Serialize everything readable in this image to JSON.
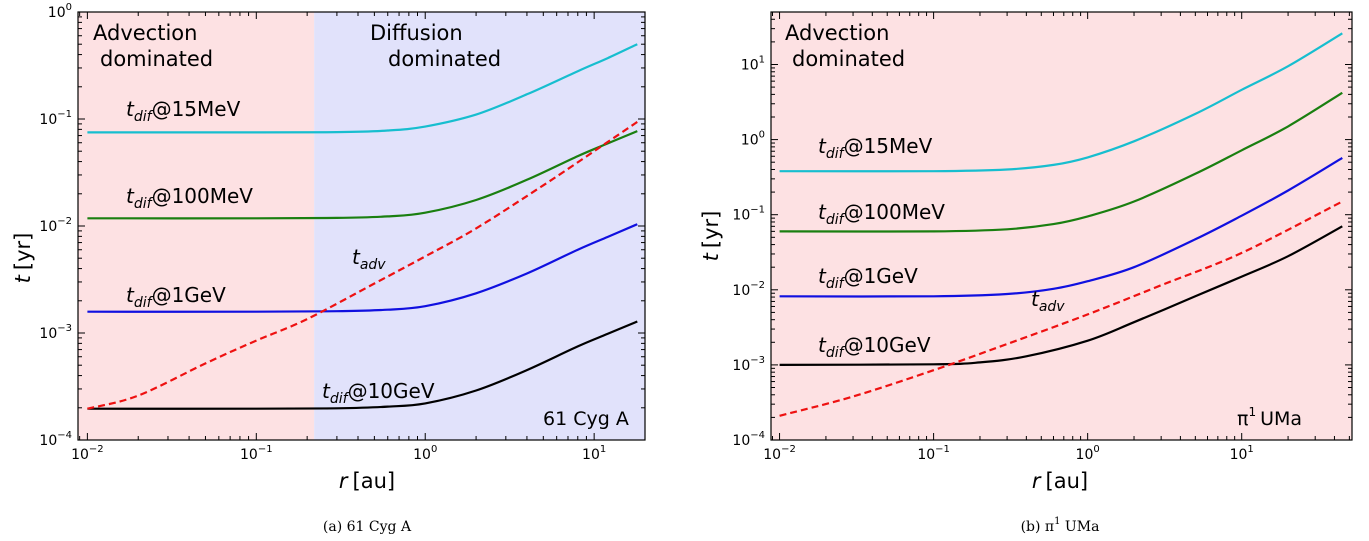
{
  "chart_data": [
    {
      "type": "line",
      "caption": "(a) 61 Cyg A",
      "star_label": "61 Cyg A",
      "xlabel": "r [au]",
      "ylabel": "t [yr]",
      "xscale": "log",
      "yscale": "log",
      "xlim": [
        0.0088,
        20
      ],
      "ylim": [
        0.0001,
        1
      ],
      "xticks": [
        0.01,
        0.1,
        1,
        10
      ],
      "yticks": [
        0.0001,
        0.001,
        0.01,
        0.1,
        1
      ],
      "regions": [
        {
          "label": "Advection\ndominated",
          "x_range": [
            0.0088,
            0.22
          ],
          "color": "#fde1e3"
        },
        {
          "label": "Diffusion\ndominated",
          "x_range": [
            0.22,
            20
          ],
          "color": "#e1e2fb"
        }
      ],
      "series": [
        {
          "name": "t_dif @15MeV",
          "color": "#17becf",
          "style": "solid",
          "x": [
            0.01,
            0.1,
            0.3,
            0.6,
            1,
            2,
            4,
            8,
            12,
            18
          ],
          "y": [
            0.075,
            0.075,
            0.0755,
            0.078,
            0.085,
            0.11,
            0.17,
            0.28,
            0.37,
            0.5
          ]
        },
        {
          "name": "t_dif @100MeV",
          "color": "#1a7f10",
          "style": "solid",
          "x": [
            0.01,
            0.1,
            0.3,
            0.6,
            1,
            2,
            4,
            8,
            12,
            18
          ],
          "y": [
            0.0118,
            0.0118,
            0.0119,
            0.0123,
            0.0133,
            0.0175,
            0.027,
            0.045,
            0.059,
            0.077
          ]
        },
        {
          "name": "t_dif @1GeV",
          "color": "#1010e0",
          "style": "solid",
          "x": [
            0.01,
            0.1,
            0.3,
            0.6,
            1,
            2,
            4,
            8,
            12,
            18
          ],
          "y": [
            0.00158,
            0.00158,
            0.0016,
            0.00165,
            0.00178,
            0.00235,
            0.0036,
            0.006,
            0.0079,
            0.0104
          ]
        },
        {
          "name": "t_dif @10GeV",
          "color": "#000000",
          "style": "solid",
          "x": [
            0.01,
            0.1,
            0.3,
            0.6,
            1,
            2,
            4,
            8,
            12,
            18
          ],
          "y": [
            0.000196,
            0.000196,
            0.000198,
            0.000205,
            0.00022,
            0.00029,
            0.00045,
            0.00075,
            0.00098,
            0.00128
          ]
        },
        {
          "name": "t_adv",
          "color": "#ee1111",
          "style": "dashed",
          "x": [
            0.01,
            0.02,
            0.05,
            0.1,
            0.2,
            0.5,
            1,
            2,
            5,
            10,
            18
          ],
          "y": [
            0.000196,
            0.00026,
            0.00052,
            0.00085,
            0.00135,
            0.0029,
            0.0052,
            0.0095,
            0.024,
            0.05,
            0.094
          ]
        }
      ],
      "annotations": [
        {
          "text": "t_dif@15MeV"
        },
        {
          "text": "t_dif@100MeV"
        },
        {
          "text": "t_dif@1GeV"
        },
        {
          "text": "t_dif@10GeV"
        },
        {
          "text": "t_adv"
        }
      ]
    },
    {
      "type": "line",
      "caption": "(b) π1 UMa",
      "star_label": "π1 UMa",
      "xlabel": "r [au]",
      "ylabel": "t [yr]",
      "xscale": "log",
      "yscale": "log",
      "xlim": [
        0.0088,
        52
      ],
      "ylim": [
        0.0001,
        50
      ],
      "xticks": [
        0.01,
        0.1,
        1,
        10
      ],
      "yticks": [
        0.0001,
        0.001,
        0.01,
        0.1,
        1,
        10
      ],
      "regions": [
        {
          "label": "Advection\ndominated",
          "x_range": [
            0.0088,
            52
          ],
          "color": "#fde1e3"
        }
      ],
      "series": [
        {
          "name": "t_dif @15MeV",
          "color": "#17becf",
          "style": "solid",
          "x": [
            0.01,
            0.1,
            0.3,
            0.6,
            1,
            2,
            5,
            10,
            20,
            45
          ],
          "y": [
            0.38,
            0.38,
            0.4,
            0.46,
            0.58,
            0.95,
            2.2,
            4.6,
            9.5,
            26
          ]
        },
        {
          "name": "t_dif @100MeV",
          "color": "#1a7f10",
          "style": "solid",
          "x": [
            0.01,
            0.1,
            0.3,
            0.6,
            1,
            2,
            5,
            10,
            20,
            45
          ],
          "y": [
            0.06,
            0.06,
            0.064,
            0.075,
            0.095,
            0.15,
            0.35,
            0.72,
            1.5,
            4.2
          ]
        },
        {
          "name": "t_dif @1GeV",
          "color": "#1010e0",
          "style": "solid",
          "x": [
            0.01,
            0.1,
            0.3,
            0.6,
            1,
            2,
            5,
            10,
            20,
            45
          ],
          "y": [
            0.0082,
            0.0082,
            0.0088,
            0.0103,
            0.013,
            0.02,
            0.047,
            0.097,
            0.21,
            0.57
          ]
        },
        {
          "name": "t_dif @10GeV",
          "color": "#000000",
          "style": "solid",
          "x": [
            0.01,
            0.1,
            0.2,
            0.4,
            1,
            2,
            5,
            10,
            20,
            45
          ],
          "y": [
            0.001,
            0.00102,
            0.00108,
            0.0013,
            0.0021,
            0.0037,
            0.0082,
            0.015,
            0.028,
            0.07
          ]
        },
        {
          "name": "t_adv",
          "color": "#ee1111",
          "style": "dashed",
          "x": [
            0.01,
            0.03,
            0.1,
            0.3,
            1,
            3,
            10,
            45
          ],
          "y": [
            0.00021,
            0.00038,
            0.00085,
            0.0019,
            0.0047,
            0.0115,
            0.031,
            0.15
          ]
        }
      ],
      "annotations": [
        {
          "text": "t_dif@15MeV"
        },
        {
          "text": "t_dif@100MeV"
        },
        {
          "text": "t_dif@1GeV"
        },
        {
          "text": "t_dif@10GeV"
        },
        {
          "text": "t_adv"
        }
      ]
    }
  ],
  "text": {
    "adv_region": [
      "Advection",
      "dominated"
    ],
    "dif_region": [
      "Diffusion",
      "dominated"
    ],
    "t_dif_main": "t",
    "t_dif_sub": "dif",
    "t_adv_sub": "adv",
    "label_15": "@15MeV",
    "label_100": "@100MeV",
    "label_1g": "@1GeV",
    "label_10g": "@10GeV",
    "ylabel_t": "t",
    "ylabel_unit": "[yr]",
    "xlabel_r": "r",
    "xlabel_unit": "[au]",
    "star_a": "61 Cyg A",
    "star_b_pi": "π",
    "star_b_sup": "1",
    "star_b_name": "UMa",
    "caption_a": "(a) 61 Cyg A",
    "caption_b_pre": "(b) π",
    "caption_b_sup": "1",
    "caption_b_post": " UMa"
  }
}
